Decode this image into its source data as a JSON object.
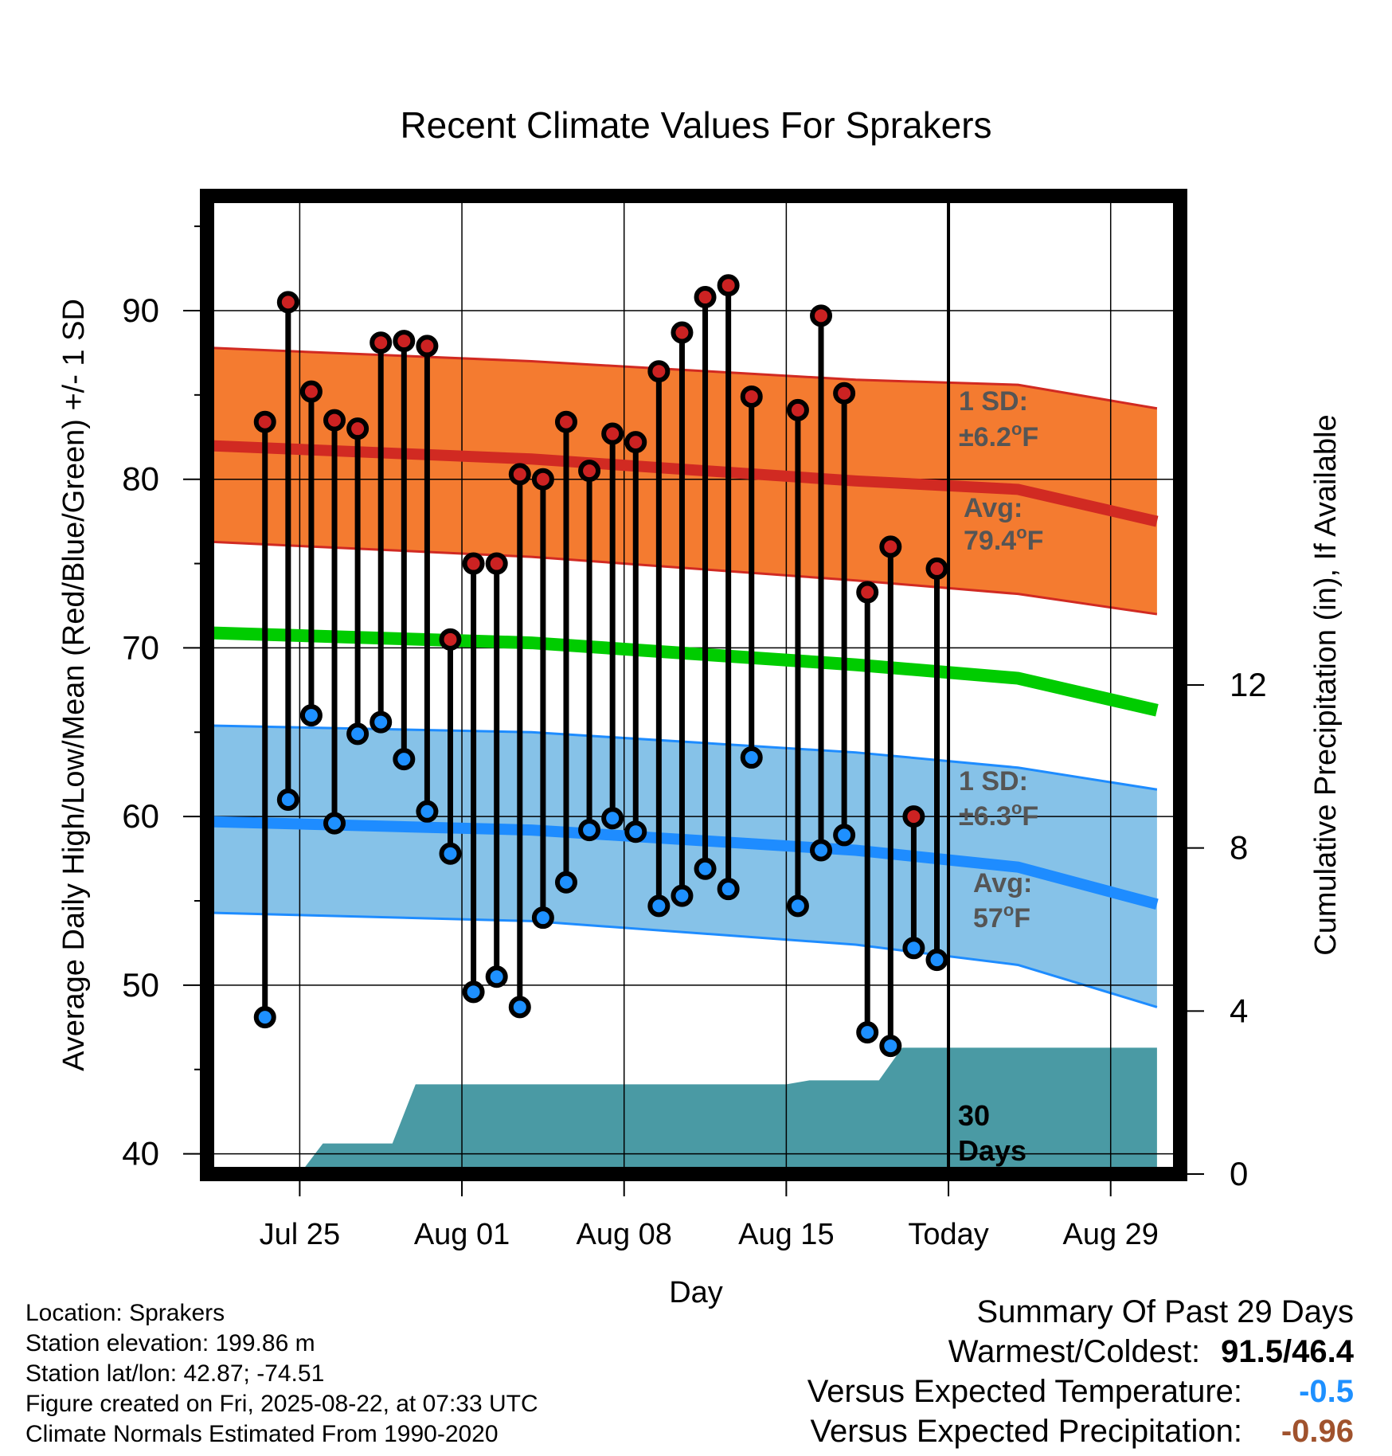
{
  "chart_data": {
    "type": "line",
    "title": "Recent Climate Values For Sprakers",
    "xlabel": "Day",
    "ylabel": "Average Daily High/Low/Mean (Red/Blue/Green) +/- 1 SD",
    "y2label": "Cumulative Precipitation (in), If Available",
    "x_tick_labels": [
      "Jul 25",
      "Aug 01",
      "Aug 08",
      "Aug 15",
      "Today",
      "Aug 29"
    ],
    "x_tick_dates": [
      "2025-07-25",
      "2025-08-01",
      "2025-08-08",
      "2025-08-15",
      "2025-08-22",
      "2025-08-29"
    ],
    "x_range": [
      "2025-07-21",
      "2025-09-01"
    ],
    "y_ticks": [
      40,
      50,
      60,
      70,
      80,
      90
    ],
    "ylim": [
      38.8,
      96.8
    ],
    "y2_ticks": [
      0,
      4,
      8,
      12
    ],
    "y2lim": [
      0,
      24
    ],
    "today": "2025-08-22",
    "dates": [
      "2025-07-23",
      "2025-07-24",
      "2025-07-25",
      "2025-07-26",
      "2025-07-27",
      "2025-07-28",
      "2025-07-29",
      "2025-07-30",
      "2025-07-31",
      "2025-08-01",
      "2025-08-02",
      "2025-08-03",
      "2025-08-04",
      "2025-08-05",
      "2025-08-06",
      "2025-08-07",
      "2025-08-08",
      "2025-08-09",
      "2025-08-10",
      "2025-08-11",
      "2025-08-12",
      "2025-08-13",
      "2025-08-14",
      "2025-08-15",
      "2025-08-16",
      "2025-08-17",
      "2025-08-18",
      "2025-08-19",
      "2025-08-20",
      "2025-08-21"
    ],
    "series": [
      {
        "name": "High",
        "color": "#cc2222",
        "values": [
          83.4,
          90.5,
          85.2,
          83.5,
          83.0,
          88.1,
          88.2,
          87.9,
          70.5,
          75.0,
          75.0,
          80.3,
          80.0,
          83.4,
          80.5,
          82.7,
          82.2,
          86.4,
          88.7,
          90.8,
          91.5,
          84.9,
          null,
          84.1,
          89.7,
          85.1,
          73.3,
          76.0,
          60.0,
          74.7
        ]
      },
      {
        "name": "Low",
        "color": "#1e90ff",
        "values": [
          48.1,
          61.0,
          66.0,
          59.6,
          64.9,
          65.6,
          63.4,
          60.3,
          57.8,
          49.6,
          50.5,
          48.7,
          54.0,
          56.1,
          59.2,
          59.9,
          59.1,
          54.7,
          55.3,
          56.9,
          55.7,
          63.5,
          null,
          54.7,
          58.0,
          58.9,
          47.2,
          46.4,
          52.2,
          51.5
        ]
      }
    ],
    "normal_high": [
      [
        0,
        82.0
      ],
      [
        14,
        81.2
      ],
      [
        28,
        79.9
      ],
      [
        35,
        79.4
      ],
      [
        41,
        77.5
      ]
    ],
    "normal_high_upper": [
      [
        0,
        87.8
      ],
      [
        14,
        87.0
      ],
      [
        28,
        85.9
      ],
      [
        35,
        85.6
      ],
      [
        41,
        84.2
      ]
    ],
    "normal_high_lower": [
      [
        0,
        76.3
      ],
      [
        14,
        75.4
      ],
      [
        28,
        74.0
      ],
      [
        35,
        73.2
      ],
      [
        41,
        72.0
      ]
    ],
    "normal_mean": [
      [
        0,
        70.9
      ],
      [
        14,
        70.3
      ],
      [
        28,
        69.0
      ],
      [
        35,
        68.2
      ],
      [
        41,
        66.3
      ]
    ],
    "normal_low": [
      [
        0,
        59.7
      ],
      [
        14,
        59.2
      ],
      [
        28,
        58.0
      ],
      [
        35,
        57.0
      ],
      [
        41,
        54.8
      ]
    ],
    "normal_low_upper": [
      [
        0,
        65.4
      ],
      [
        14,
        65.0
      ],
      [
        28,
        63.8
      ],
      [
        35,
        62.9
      ],
      [
        41,
        61.6
      ]
    ],
    "normal_low_lower": [
      [
        0,
        54.3
      ],
      [
        14,
        53.8
      ],
      [
        28,
        52.4
      ],
      [
        35,
        51.2
      ],
      [
        41,
        48.7
      ]
    ],
    "precip_cumulative": [
      [
        0,
        0
      ],
      [
        4,
        0
      ],
      [
        5,
        0.75
      ],
      [
        8,
        0.75
      ],
      [
        9,
        2.2
      ],
      [
        25,
        2.2
      ],
      [
        26,
        2.3
      ],
      [
        29,
        2.3
      ],
      [
        30,
        3.1
      ],
      [
        41,
        3.1
      ]
    ],
    "colors": {
      "high_band": "#f47b30",
      "high_line": "#d12a22",
      "mean_line": "#00cc00",
      "low_band": "#86c2e8",
      "low_line": "#1e8cff",
      "precip": "#4a9aa4",
      "marker_today": "#555555"
    },
    "annotations": {
      "high_sd_label": "1 SD:",
      "high_sd_value": "±6.2",
      "high_avg_label": "Avg:",
      "high_avg_value": "79.4",
      "low_sd_label": "1 SD:",
      "low_sd_value": "±6.3",
      "low_avg_label": "Avg:",
      "low_avg_value": "57",
      "degree_symbol": "o",
      "unit": "F",
      "days_line1": "30",
      "days_line2": "Days"
    }
  },
  "footer": {
    "location": "Location: Sprakers",
    "elevation": "Station elevation: 199.86 m",
    "latlon": "Station lat/lon: 42.87; -74.51",
    "created": "Figure created on Fri, 2025-08-22, at 07:33 UTC",
    "normals": "Climate Normals Estimated From 1990-2020"
  },
  "summary": {
    "title": "Summary Of Past 29 Days",
    "warm_cold_label": "Warmest/Coldest:",
    "warm_cold_value": "91.5/46.4",
    "temp_label": "Versus Expected Temperature:",
    "temp_value": "-0.5",
    "temp_color": "#1e90ff",
    "precip_label": "Versus Expected Precipitation:",
    "precip_value": "-0.96",
    "precip_color": "#a0522d"
  }
}
